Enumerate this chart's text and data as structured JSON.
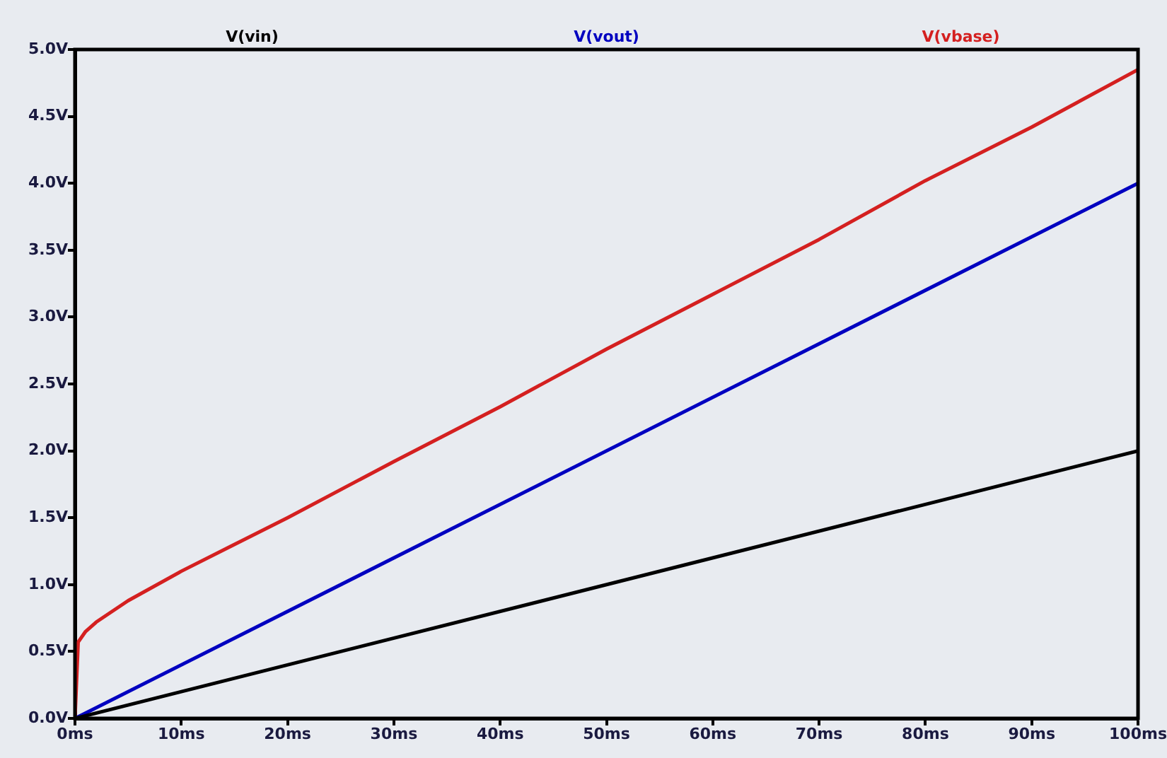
{
  "chart_data": {
    "type": "line",
    "xlim": [
      0,
      100
    ],
    "ylim": [
      0,
      5
    ],
    "xticks": [
      {
        "value": 0,
        "label": "0ms"
      },
      {
        "value": 10,
        "label": "10ms"
      },
      {
        "value": 20,
        "label": "20ms"
      },
      {
        "value": 30,
        "label": "30ms"
      },
      {
        "value": 40,
        "label": "40ms"
      },
      {
        "value": 50,
        "label": "50ms"
      },
      {
        "value": 60,
        "label": "60ms"
      },
      {
        "value": 70,
        "label": "70ms"
      },
      {
        "value": 80,
        "label": "80ms"
      },
      {
        "value": 90,
        "label": "90ms"
      },
      {
        "value": 100,
        "label": "100ms"
      }
    ],
    "yticks": [
      {
        "value": 0,
        "label": "0.0V"
      },
      {
        "value": 0.5,
        "label": "0.5V"
      },
      {
        "value": 1,
        "label": "1.0V"
      },
      {
        "value": 1.5,
        "label": "1.5V"
      },
      {
        "value": 2,
        "label": "2.0V"
      },
      {
        "value": 2.5,
        "label": "2.5V"
      },
      {
        "value": 3,
        "label": "3.0V"
      },
      {
        "value": 3.5,
        "label": "3.5V"
      },
      {
        "value": 4,
        "label": "4.0V"
      },
      {
        "value": 4.5,
        "label": "4.5V"
      },
      {
        "value": 5,
        "label": "5.0V"
      }
    ],
    "grid": false,
    "legend": "top",
    "marker": "none",
    "line_style": "solid",
    "series": [
      {
        "name": "V(vin)",
        "color": "#000000",
        "x": [
          0,
          100
        ],
        "values": [
          0,
          2.0
        ]
      },
      {
        "name": "V(vout)",
        "color": "#0000c0",
        "x": [
          0,
          100
        ],
        "values": [
          0,
          4.0
        ]
      },
      {
        "name": "V(vbase)",
        "color": "#d42020",
        "x": [
          0,
          0.3,
          1,
          2,
          5,
          10,
          15,
          20,
          30,
          40,
          50,
          60,
          70,
          80,
          90,
          100
        ],
        "values": [
          0,
          0.57,
          0.65,
          0.72,
          0.88,
          1.1,
          1.3,
          1.5,
          1.92,
          2.33,
          2.76,
          3.17,
          3.58,
          4.02,
          4.42,
          4.85
        ]
      }
    ]
  }
}
